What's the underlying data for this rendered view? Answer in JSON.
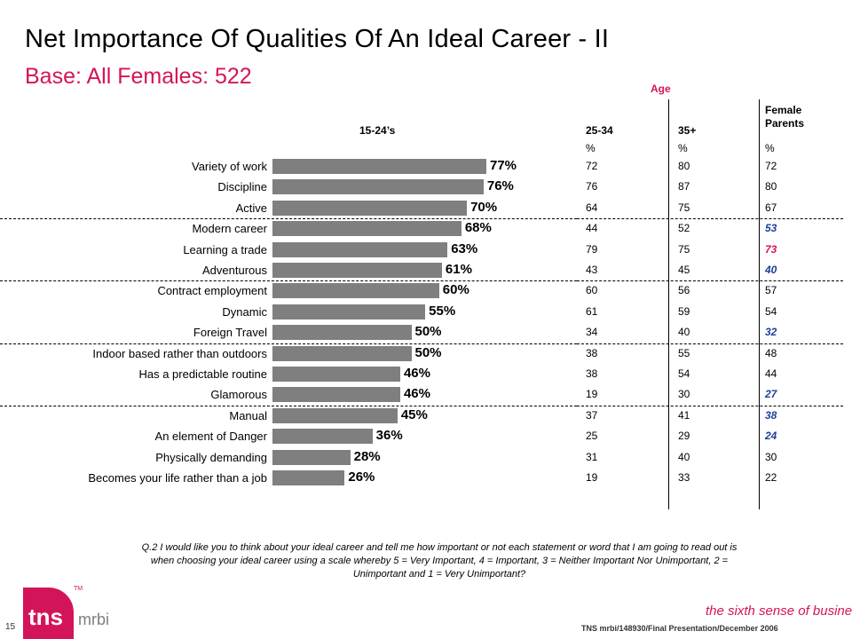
{
  "title": "Net Importance Of Qualities Of An Ideal Career - II",
  "subtitle": "Base:  All Females:  522",
  "header": {
    "age_label": "Age",
    "bar_col": "15-24’s",
    "col1": "25-34",
    "col2": "35+",
    "col3_line1": "Female",
    "col3_line2": "Parents",
    "pct_symbol": "%"
  },
  "chart_data": {
    "type": "bar",
    "orientation": "horizontal",
    "categories": [
      "Variety of work",
      "Discipline",
      "Active",
      "Modern career",
      "Learning a trade",
      "Adventurous",
      "Contract employment",
      "Dynamic",
      "Foreign Travel",
      "Indoor based rather than outdoors",
      "Has a predictable routine",
      "Glamorous",
      "Manual",
      "An element of Danger",
      "Physically demanding",
      "Becomes your life rather than a job"
    ],
    "series": [
      {
        "name": "15-24’s",
        "values": [
          77,
          76,
          70,
          68,
          63,
          61,
          60,
          55,
          50,
          50,
          46,
          46,
          45,
          36,
          28,
          26
        ]
      }
    ],
    "value_labels": [
      "77%",
      "76%",
      "70%",
      "68%",
      "63%",
      "61%",
      "60%",
      "55%",
      "50%",
      "50%",
      "46%",
      "46%",
      "45%",
      "36%",
      "28%",
      "26%"
    ],
    "xlim": [
      0,
      100
    ],
    "table": {
      "columns": [
        "25-34",
        "35+",
        "Female Parents"
      ],
      "rows": [
        [
          "72",
          "80",
          "72"
        ],
        [
          "76",
          "87",
          "80"
        ],
        [
          "64",
          "75",
          "67"
        ],
        [
          "44",
          "52",
          "53"
        ],
        [
          "79",
          "75",
          "73"
        ],
        [
          "43",
          "45",
          "40"
        ],
        [
          "60",
          "56",
          "57"
        ],
        [
          "61",
          "59",
          "54"
        ],
        [
          "34",
          "40",
          "32"
        ],
        [
          "38",
          "55",
          "48"
        ],
        [
          "38",
          "54",
          "44"
        ],
        [
          "19",
          "30",
          "27"
        ],
        [
          "37",
          "41",
          "38"
        ],
        [
          "25",
          "29",
          "24"
        ],
        [
          "31",
          "40",
          "30"
        ],
        [
          "19",
          "33",
          "22"
        ]
      ],
      "highlight_col3": [
        false,
        false,
        false,
        true,
        true,
        true,
        false,
        false,
        true,
        false,
        false,
        true,
        true,
        true,
        false,
        false
      ],
      "highlight_col3_colors": [
        "#000000",
        "#000000",
        "#000000",
        "#1f3f99",
        "#d4145a",
        "#1f3f99",
        "#000000",
        "#000000",
        "#1f3f99",
        "#000000",
        "#000000",
        "#1f3f99",
        "#1f3f99",
        "#1f3f99",
        "#000000",
        "#000000"
      ]
    },
    "group_separators_after": [
      2,
      5,
      8,
      11
    ],
    "bar_color": "#7f7f7f"
  },
  "footnote": "Q.2  I would like you to think about your ideal career and tell me how important or not each statement or word that I am going to read out is when choosing your ideal career using a scale whereby 5 = Very Important, 4 = Important, 3 = Neither Important Nor Unimportant, 2 = Unimportant and 1 = Very Unimportant?",
  "slide_number": "15",
  "reference": "TNS mrbi/148930/Final Presentation/December 2006",
  "tagline": "the sixth sense of business",
  "tagline_tm": "TM",
  "logo": {
    "tns": "tns",
    "mrbi": "mrbi",
    "tm": "TM"
  },
  "colors": {
    "accent": "#d4145a",
    "blue": "#1f3f99",
    "bar": "#7f7f7f"
  }
}
